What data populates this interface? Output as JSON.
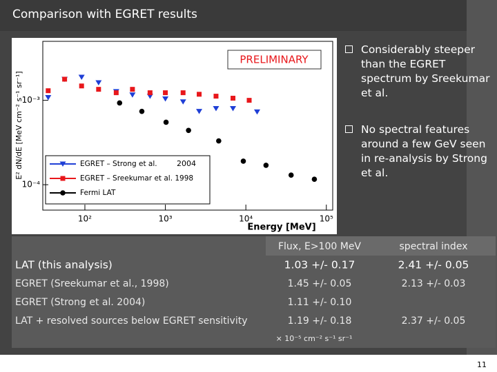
{
  "header": {
    "title": "Comparison with EGRET results"
  },
  "plot": {
    "type": "scatter",
    "xlabel": "Energy [MeV]",
    "ylabel": "E² dN/dE [MeV cm⁻² s⁻¹ sr⁻¹]",
    "annotations": [
      "PRELIMINARY",
      "2004"
    ],
    "xscale": "log",
    "yscale": "log",
    "xlim": [
      30,
      120000
    ],
    "ylim": [
      5e-05,
      0.005
    ],
    "xticks": [
      {
        "value": 100,
        "label": "10²"
      },
      {
        "value": 1000,
        "label": "10³"
      },
      {
        "value": 10000,
        "label": "10⁴"
      },
      {
        "value": 100000,
        "label": "10⁵"
      }
    ],
    "yticks": [
      {
        "value": 0.0001,
        "label": "10⁻⁴"
      },
      {
        "value": 0.001,
        "label": "10⁻³"
      }
    ],
    "legend": "lower left",
    "series": [
      {
        "name": "EGRET – Strong et al.",
        "color": "#1f3fd6",
        "marker": "triangle-down",
        "x": [
          35,
          56,
          91,
          148,
          245,
          390,
          645,
          1000,
          1660,
          2630,
          4260,
          6920,
          13800
        ],
        "values": [
          0.00108,
          0.00178,
          0.00188,
          0.00162,
          0.00127,
          0.00116,
          0.00112,
          0.00104,
          0.00096,
          0.00074,
          0.0008,
          0.0008,
          0.00073
        ]
      },
      {
        "name": "EGRET – Sreekumar et al. 1998",
        "color": "#e8171b",
        "marker": "square",
        "x": [
          35,
          56,
          91,
          148,
          245,
          390,
          645,
          1000,
          1660,
          2630,
          4260,
          6920,
          11000
        ],
        "values": [
          0.0013,
          0.00178,
          0.00148,
          0.00135,
          0.00123,
          0.00135,
          0.00123,
          0.00123,
          0.00123,
          0.00118,
          0.00112,
          0.00106,
          0.001
        ]
      },
      {
        "name": "Fermi LAT",
        "color": "#000000",
        "marker": "circle",
        "x": [
          270,
          510,
          1020,
          1940,
          4600,
          9300,
          17800,
          36500,
          71000
        ],
        "values": [
          0.00093,
          0.00074,
          0.00055,
          0.00044,
          0.00033,
          0.00019,
          0.00017,
          0.00013,
          0.000116
        ]
      }
    ]
  },
  "bullets": [
    "Considerably steeper than the EGRET spectrum by Sreekumar et al.",
    "No spectral features around a few GeV seen in re-analysis by Strong et al."
  ],
  "table": {
    "header": [
      "Flux, E>100 MeV",
      "spectral index"
    ],
    "rows": [
      [
        "LAT (this analysis)",
        "1.03 +/- 0.17",
        "2.41 +/- 0.05"
      ],
      [
        "EGRET (Sreekumar et al., 1998)",
        "1.45 +/- 0.05",
        "2.13 +/- 0.03"
      ],
      [
        "EGRET (Strong et al. 2004)",
        "1.11 +/- 0.10"
      ],
      [
        "LAT + resolved sources below EGRET sensitivity",
        "1.19 +/- 0.18",
        "2.37 +/- 0.05"
      ]
    ],
    "note": "× 10⁻⁵ cm⁻² s⁻¹ sr⁻¹"
  },
  "footer": {
    "page": "11"
  }
}
